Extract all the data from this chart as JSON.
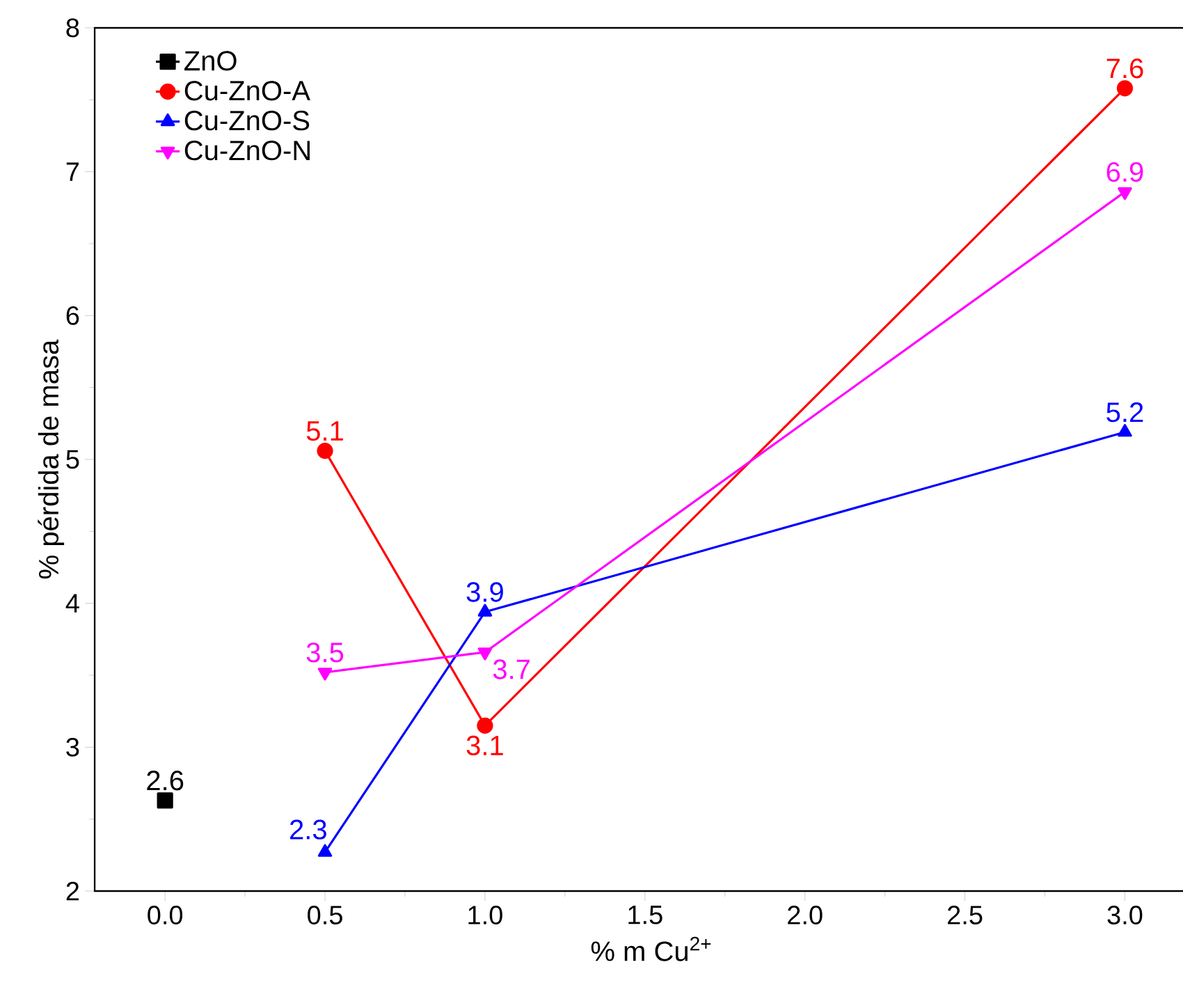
{
  "chart_data": {
    "type": "line",
    "xlabel": "% m Cu$^{2+}$",
    "ylabel": "% pérdida de masa",
    "xlim": [
      -0.22,
      3.26
    ],
    "ylim": [
      2,
      8
    ],
    "xticks": [
      {
        "value": 0,
        "label": "0.0"
      },
      {
        "value": 0.5,
        "label": "0.5"
      },
      {
        "value": 1,
        "label": "1.0"
      },
      {
        "value": 1.5,
        "label": "1.5"
      },
      {
        "value": 2,
        "label": "2.0"
      },
      {
        "value": 2.5,
        "label": "2.5"
      },
      {
        "value": 3,
        "label": "3.0"
      }
    ],
    "yticks": [
      2,
      3,
      4,
      5,
      6,
      7,
      8
    ],
    "legend": "top left",
    "grid": false,
    "line_style": "solid",
    "series": [
      {
        "name": "ZnO",
        "color": "#000000",
        "marker": "square",
        "x": [
          0
        ],
        "values": [
          2.63
        ],
        "value_labels": [
          "2.6"
        ]
      },
      {
        "name": "Cu-ZnO-A",
        "color": "#ff0000",
        "marker": "circle",
        "x": [
          0.5,
          1,
          3
        ],
        "values": [
          5.06,
          3.15,
          7.58
        ],
        "value_labels": [
          "5.1",
          "3.1",
          "7.6"
        ]
      },
      {
        "name": "Cu-ZnO-S",
        "color": "#0000ff",
        "marker": "triangle",
        "x": [
          0.5,
          1,
          3
        ],
        "values": [
          2.27,
          3.94,
          5.19
        ],
        "value_labels": [
          "2.3",
          "3.9",
          "5.2"
        ]
      },
      {
        "name": "Cu-ZnO-N",
        "color": "#ff00ff",
        "marker": "triangle down",
        "x": [
          0.5,
          1,
          3
        ],
        "values": [
          3.52,
          3.66,
          6.86
        ],
        "value_labels": [
          "3.5",
          "3.7",
          "6.9"
        ]
      }
    ]
  }
}
